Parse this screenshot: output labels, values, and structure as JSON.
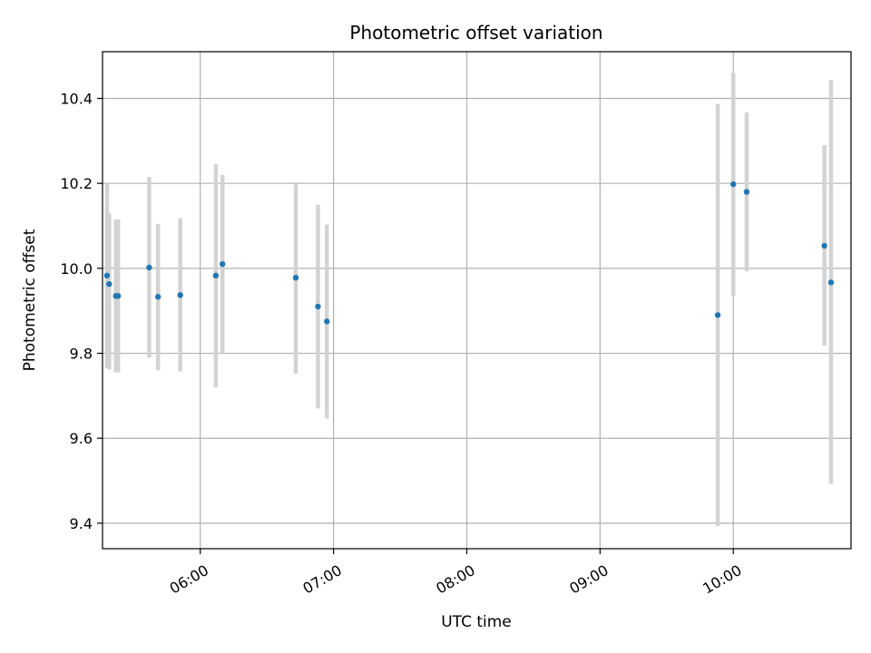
{
  "chart_data": {
    "type": "scatter",
    "title": "Photometric offset variation",
    "xlabel": "UTC time",
    "ylabel": "Photometric offset",
    "grid": true,
    "xlim": [
      "05:16",
      "10:53"
    ],
    "ylim": [
      9.34,
      10.51
    ],
    "x_ticks": [
      "06:00",
      "07:00",
      "08:00",
      "09:00",
      "10:00"
    ],
    "y_ticks": [
      9.4,
      9.6,
      9.8,
      10.0,
      10.2,
      10.4
    ],
    "colors": {
      "marker": "#1f77b4",
      "errorbar": "#d3d3d3"
    },
    "points": [
      {
        "x": "05:18",
        "y": 9.983,
        "yerr_low": 9.765,
        "yerr_high": 10.2
      },
      {
        "x": "05:19",
        "y": 9.963,
        "yerr_low": 9.762,
        "yerr_high": 10.13
      },
      {
        "x": "05:22",
        "y": 9.935,
        "yerr_low": 9.755,
        "yerr_high": 10.115
      },
      {
        "x": "05:23",
        "y": 9.935,
        "yerr_low": 9.755,
        "yerr_high": 10.115
      },
      {
        "x": "05:37",
        "y": 10.002,
        "yerr_low": 9.79,
        "yerr_high": 10.215
      },
      {
        "x": "05:41",
        "y": 9.933,
        "yerr_low": 9.76,
        "yerr_high": 10.105
      },
      {
        "x": "05:51",
        "y": 9.937,
        "yerr_low": 9.757,
        "yerr_high": 10.118
      },
      {
        "x": "06:07",
        "y": 9.983,
        "yerr_low": 9.72,
        "yerr_high": 10.245
      },
      {
        "x": "06:10",
        "y": 10.01,
        "yerr_low": 9.8,
        "yerr_high": 10.22
      },
      {
        "x": "06:43",
        "y": 9.978,
        "yerr_low": 9.752,
        "yerr_high": 10.203
      },
      {
        "x": "06:53",
        "y": 9.91,
        "yerr_low": 9.67,
        "yerr_high": 10.15
      },
      {
        "x": "06:57",
        "y": 9.875,
        "yerr_low": 9.647,
        "yerr_high": 10.103
      },
      {
        "x": "09:53",
        "y": 9.89,
        "yerr_low": 9.393,
        "yerr_high": 10.387
      },
      {
        "x": "10:00",
        "y": 10.198,
        "yerr_low": 9.935,
        "yerr_high": 10.46
      },
      {
        "x": "10:06",
        "y": 10.18,
        "yerr_low": 9.993,
        "yerr_high": 10.367
      },
      {
        "x": "10:41",
        "y": 10.053,
        "yerr_low": 9.818,
        "yerr_high": 10.29
      },
      {
        "x": "10:44",
        "y": 9.967,
        "yerr_low": 9.493,
        "yerr_high": 10.443
      }
    ]
  }
}
